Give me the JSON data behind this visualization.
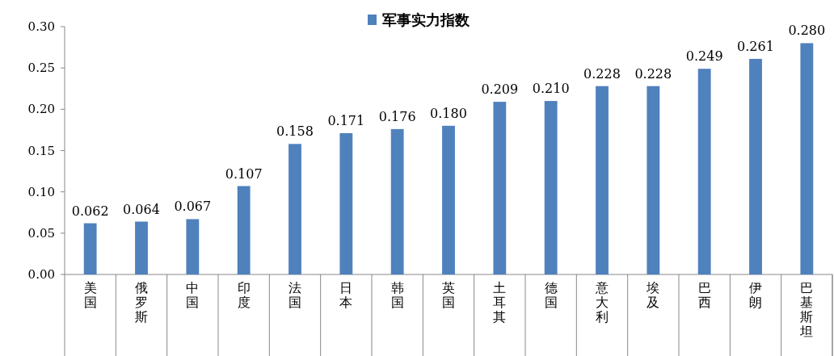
{
  "chart_data": {
    "type": "bar",
    "categories": [
      "美国",
      "俄罗斯",
      "中国",
      "印度",
      "法国",
      "日本",
      "韩国",
      "英国",
      "土耳其",
      "德国",
      "意大利",
      "埃及",
      "巴西",
      "伊朗",
      "巴基斯坦"
    ],
    "series": [
      {
        "name": "军事实力指数",
        "color": "#4f81bd",
        "values": [
          0.062,
          0.064,
          0.067,
          0.107,
          0.158,
          0.171,
          0.176,
          0.18,
          0.209,
          0.21,
          0.228,
          0.228,
          0.249,
          0.261,
          0.28
        ],
        "value_labels": [
          "0.062",
          "0.064",
          "0.067",
          "0.107",
          "0.158",
          "0.171",
          "0.176",
          "0.180",
          "0.209",
          "0.210",
          "0.228",
          "0.228",
          "0.249",
          "0.261",
          "0.280"
        ]
      }
    ],
    "ylim": [
      0,
      0.3
    ],
    "yticks": [
      {
        "value": 0,
        "label": "0.00"
      },
      {
        "value": 0.05,
        "label": "0.05"
      },
      {
        "value": 0.1,
        "label": "0.10"
      },
      {
        "value": 0.15,
        "label": "0.15"
      },
      {
        "value": 0.2,
        "label": "0.20"
      },
      {
        "value": 0.25,
        "label": "0.25"
      },
      {
        "value": 0.3,
        "label": "0.30"
      }
    ],
    "legend": "top"
  }
}
